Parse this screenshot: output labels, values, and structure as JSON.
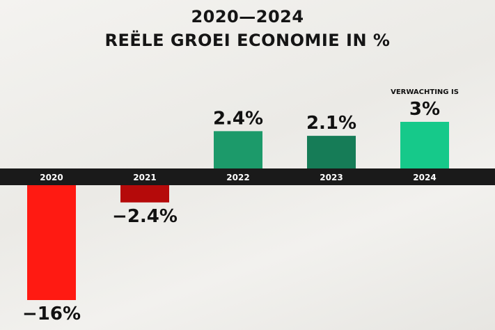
{
  "chart_data": {
    "type": "bar",
    "title": "2020—2024",
    "subtitle": "REËLE GROEI ECONOMIE IN %",
    "categories": [
      "2020",
      "2021",
      "2022",
      "2023",
      "2024"
    ],
    "values": [
      -16,
      -2.4,
      2.4,
      2.1,
      3
    ],
    "value_labels": [
      "−16%",
      "−2.4%",
      "2.4%",
      "2.1%",
      "3%"
    ],
    "annotations": [
      {
        "category": "2024",
        "text": "VERWACHTING IS"
      }
    ],
    "bar_colors": [
      "#ff1a12",
      "#b50a0a",
      "#1c9a6a",
      "#167c57",
      "#16c98a"
    ],
    "axis_band_color": "#1a1a1a",
    "ylim": [
      -16,
      3
    ],
    "grid": false,
    "legend": "none"
  }
}
